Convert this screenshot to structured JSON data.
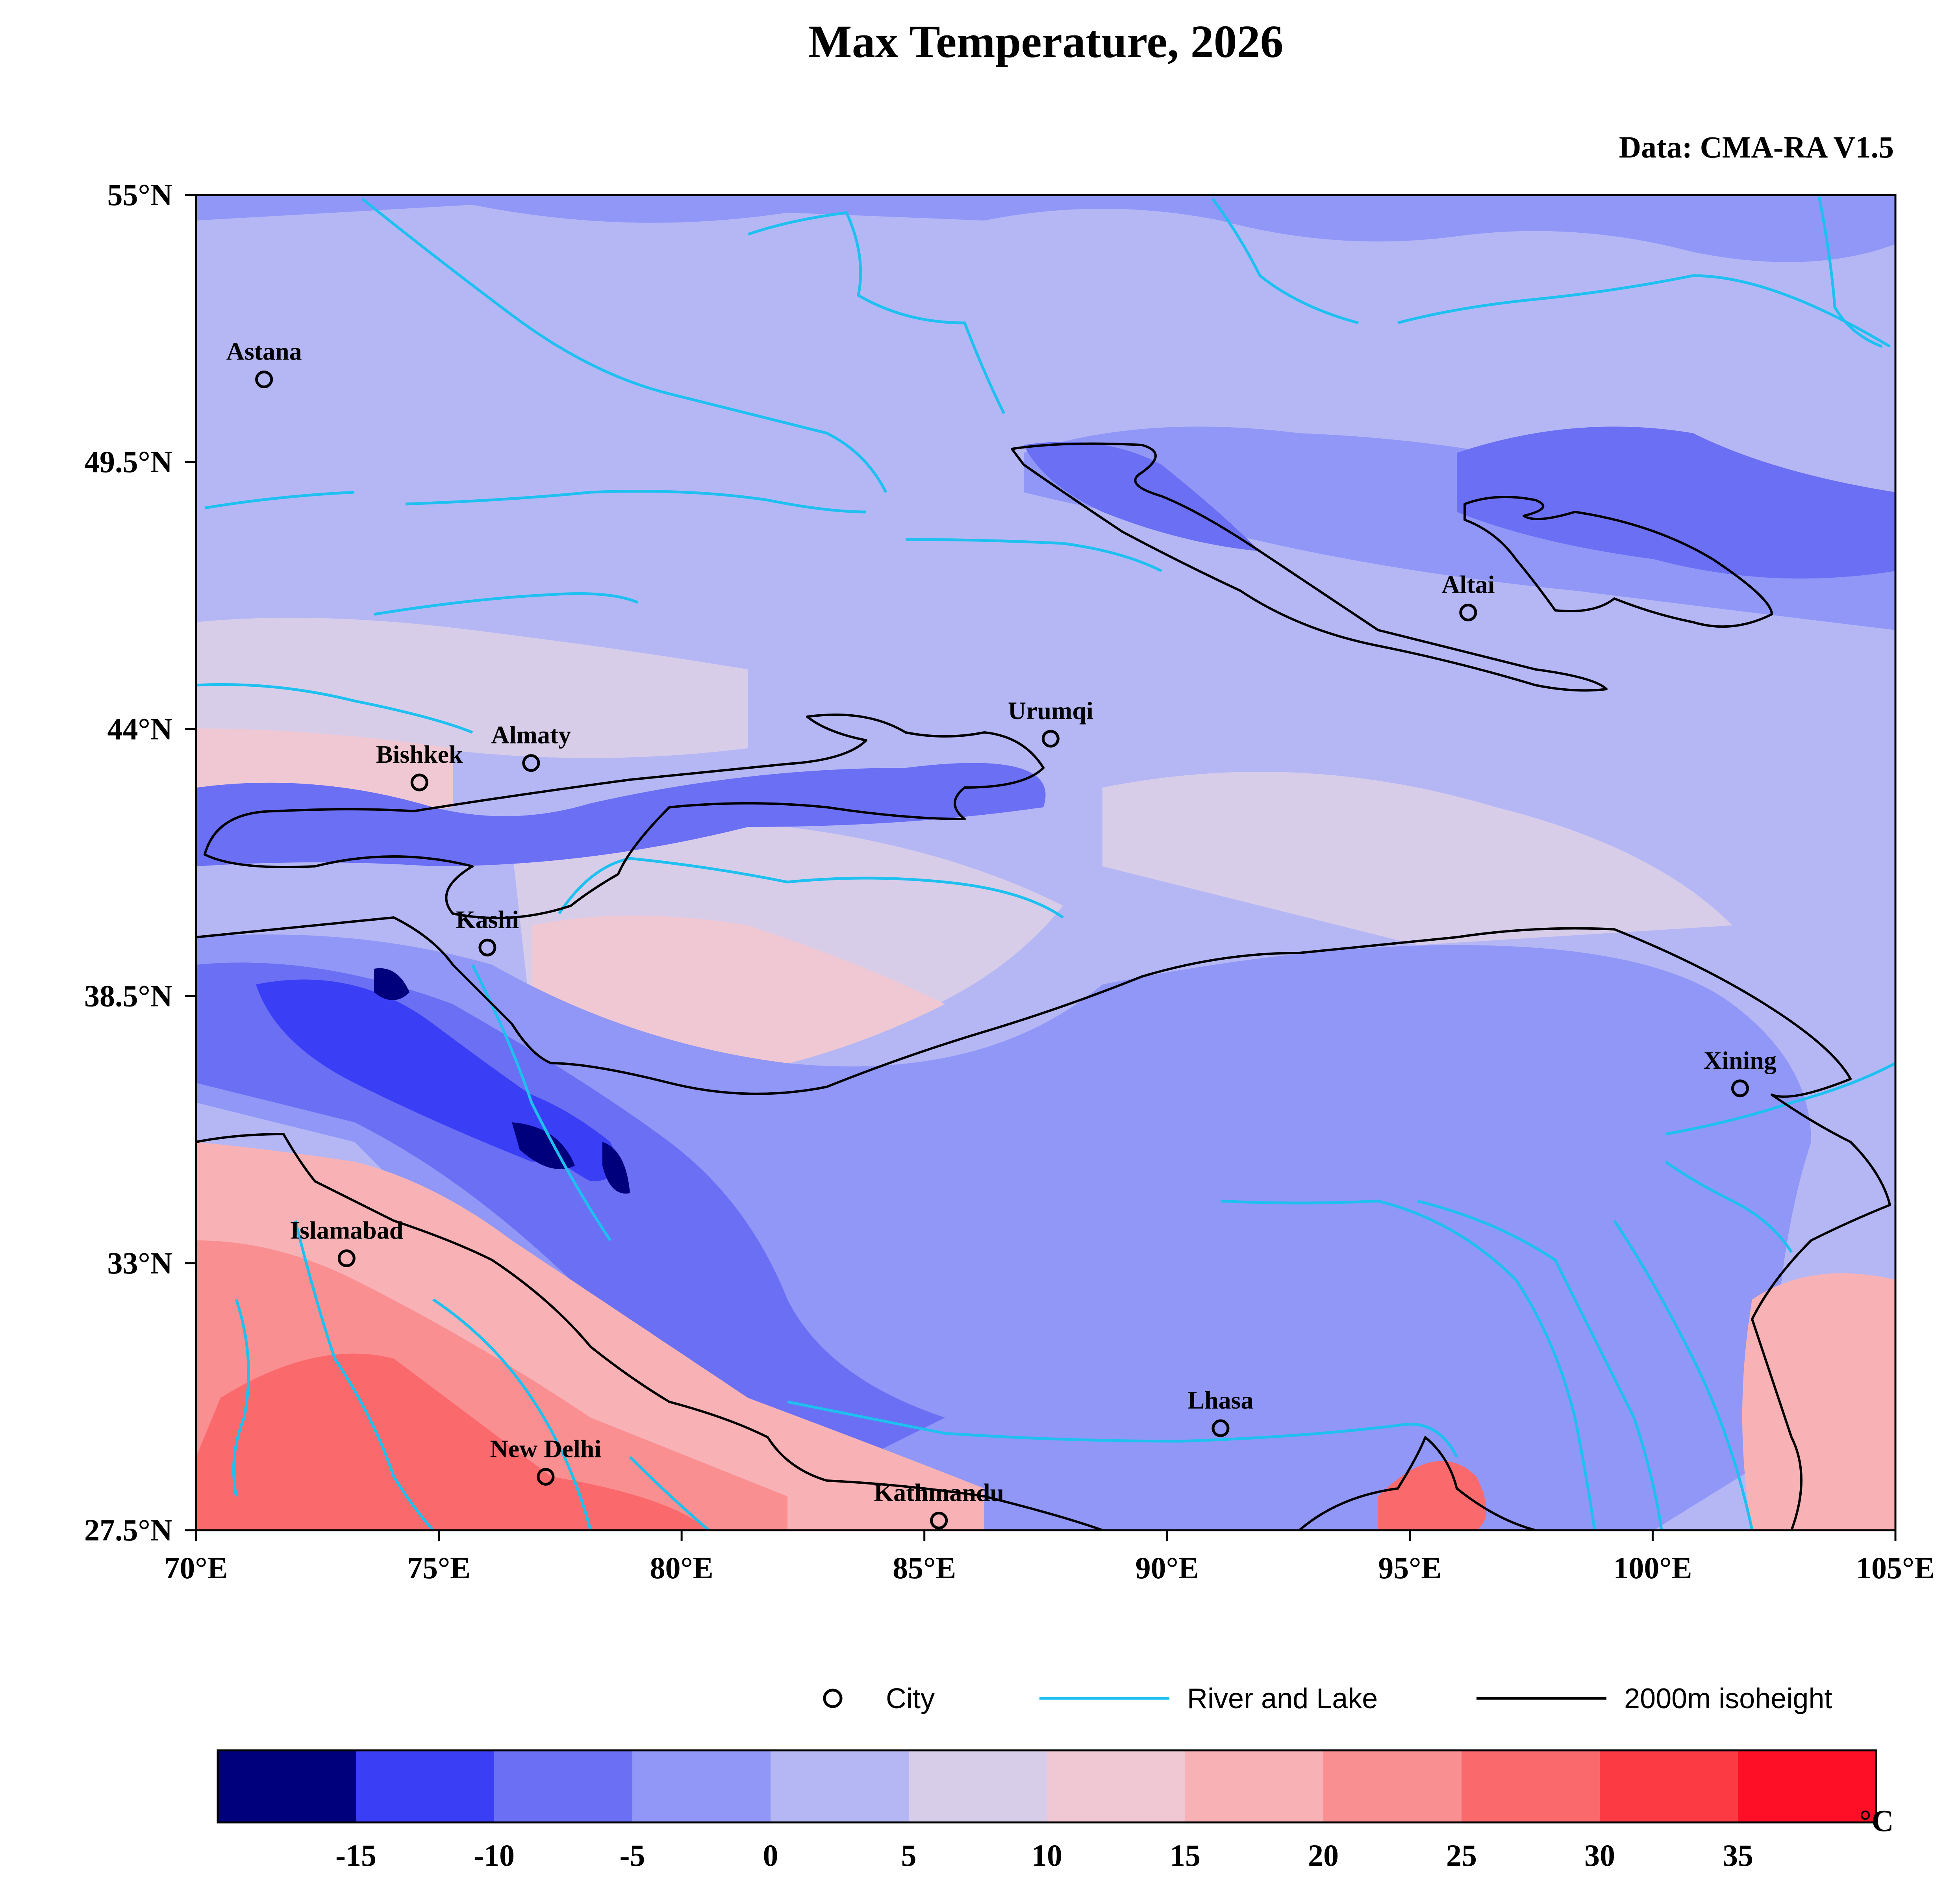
{
  "title": "Max Temperature, 2026",
  "source": "Data: CMA-RA V1.5",
  "map": {
    "extent": {
      "lon": [
        70,
        105
      ],
      "lat": [
        27.5,
        55
      ]
    },
    "lon_ticks": [
      {
        "value": 70,
        "label": "70°E"
      },
      {
        "value": 75,
        "label": "75°E"
      },
      {
        "value": 80,
        "label": "80°E"
      },
      {
        "value": 85,
        "label": "85°E"
      },
      {
        "value": 90,
        "label": "90°E"
      },
      {
        "value": 95,
        "label": "95°E"
      },
      {
        "value": 100,
        "label": "100°E"
      },
      {
        "value": 105,
        "label": "105°E"
      }
    ],
    "lat_ticks": [
      {
        "value": 55,
        "label": "55°N"
      },
      {
        "value": 49.5,
        "label": "49.5°N"
      },
      {
        "value": 44,
        "label": "44°N"
      },
      {
        "value": 38.5,
        "label": "38.5°N"
      },
      {
        "value": 33,
        "label": "33°N"
      },
      {
        "value": 27.5,
        "label": "27.5°N"
      }
    ],
    "cities": [
      {
        "name": "Astana",
        "lon": 71.4,
        "lat": 51.2
      },
      {
        "name": "Almaty",
        "lon": 76.9,
        "lat": 43.3
      },
      {
        "name": "Bishkek",
        "lon": 74.6,
        "lat": 42.9
      },
      {
        "name": "Urumqi",
        "lon": 87.6,
        "lat": 43.8
      },
      {
        "name": "Altai",
        "lon": 96.2,
        "lat": 46.4
      },
      {
        "name": "Kashi",
        "lon": 76.0,
        "lat": 39.5
      },
      {
        "name": "Xining",
        "lon": 101.8,
        "lat": 36.6
      },
      {
        "name": "Islamabad",
        "lon": 73.1,
        "lat": 33.1
      },
      {
        "name": "Lhasa",
        "lon": 91.1,
        "lat": 29.6
      },
      {
        "name": "New Delhi",
        "lon": 77.2,
        "lat": 28.6
      },
      {
        "name": "Kathmandu",
        "lon": 85.3,
        "lat": 27.7
      }
    ]
  },
  "legend": {
    "city": "City",
    "river": "River and Lake",
    "isoheight": "2000m isoheight",
    "colors": {
      "city_marker": "#000000",
      "river": "#1ec0f0",
      "isoheight": "#000000"
    }
  },
  "colorbar": {
    "unit": "°C",
    "colors": [
      "#00007d",
      "#3a3ef4",
      "#6a6ff4",
      "#9097f6",
      "#b5b7f5",
      "#d8cde9",
      "#efc8d3",
      "#f8b2b6",
      "#fa8f91",
      "#fa6a6d",
      "#fb3a44",
      "#ff0f26"
    ],
    "ticks": [
      "-15",
      "-10",
      "-5",
      "0",
      "5",
      "10",
      "15",
      "20",
      "25",
      "30",
      "35"
    ]
  }
}
